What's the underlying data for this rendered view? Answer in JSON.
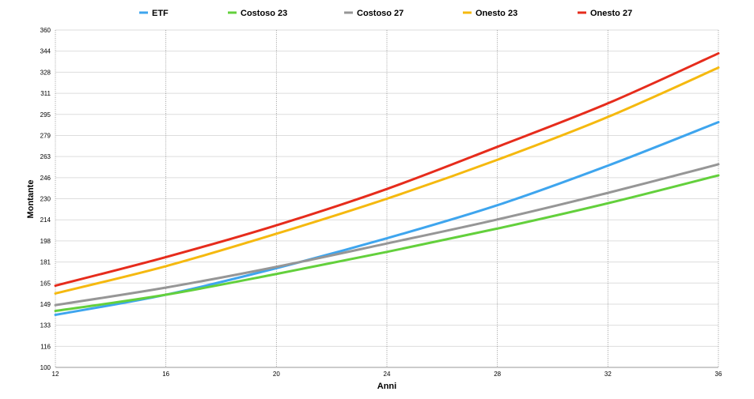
{
  "chart_data": {
    "type": "line",
    "title": "",
    "xlabel": "Anni",
    "ylabel": "Montante",
    "x": [
      12,
      16,
      20,
      24,
      28,
      32,
      36
    ],
    "xlim": [
      12,
      36
    ],
    "ylim": [
      100,
      360
    ],
    "x_ticks": [
      "12",
      "16",
      "20",
      "24",
      "28",
      "32",
      "36"
    ],
    "y_ticks": [
      "100",
      "116",
      "133",
      "149",
      "165",
      "181",
      "198",
      "214",
      "230",
      "246",
      "263",
      "279",
      "295",
      "311",
      "328",
      "344",
      "360"
    ],
    "grid": true,
    "legend_position": "top",
    "series": [
      {
        "name": "ETF",
        "color": "#3ea5ee",
        "values": [
          140.5,
          156,
          176.5,
          199.5,
          225,
          255.5,
          289
        ]
      },
      {
        "name": "Costoso 23",
        "color": "#63d03c",
        "values": [
          143.5,
          156,
          172,
          189,
          207,
          226.5,
          248
        ]
      },
      {
        "name": "Costoso 27",
        "color": "#969696",
        "values": [
          148,
          161.5,
          177.5,
          195.5,
          214,
          234.5,
          256.5
        ]
      },
      {
        "name": "Onesto 23",
        "color": "#f5b90f",
        "values": [
          157,
          178,
          203,
          230,
          260,
          293,
          331
        ]
      },
      {
        "name": "Onesto 27",
        "color": "#e62c1c",
        "values": [
          163,
          185,
          209.5,
          237.5,
          270,
          303.5,
          342
        ]
      }
    ]
  }
}
